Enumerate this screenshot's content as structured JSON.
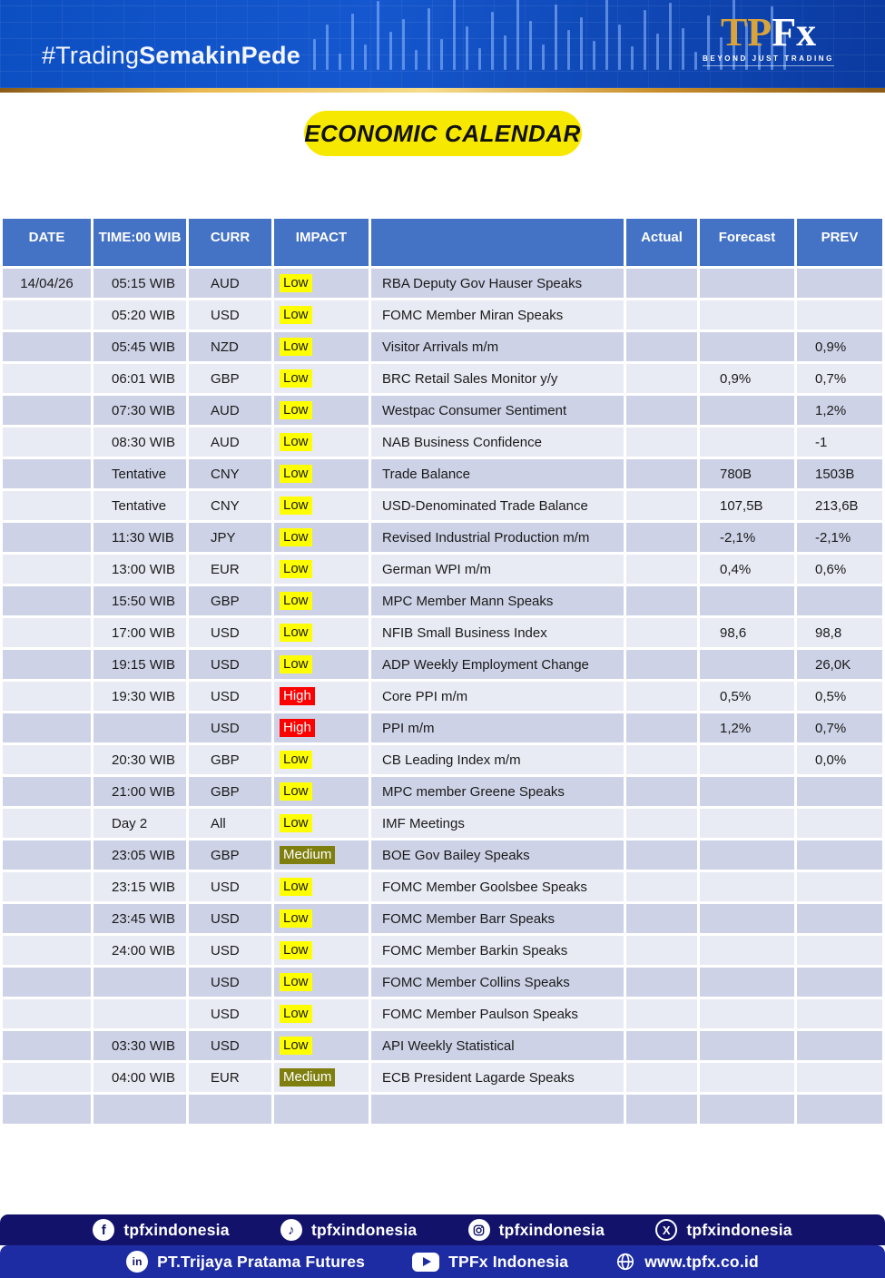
{
  "banner": {
    "hashtag_regular": "#Trading",
    "hashtag_bold": "SemakinPede",
    "logo": {
      "gold": "TP",
      "white": "Fx",
      "tagline": "BEYOND JUST TRADING"
    }
  },
  "title_badge": "ECONOMIC CALENDAR",
  "table": {
    "headers": {
      "date": "DATE",
      "time": "TIME:00 WIB",
      "curr": "CURR",
      "impact": "IMPACT",
      "event": "",
      "actual": "Actual",
      "forecast": "Forecast",
      "prev": "PREV"
    },
    "rows": [
      {
        "date": "14/04/26",
        "time": "05:15 WIB",
        "curr": "AUD",
        "impact": "Low",
        "event": "RBA Deputy Gov Hauser Speaks",
        "actual": "",
        "forecast": "",
        "prev": ""
      },
      {
        "date": "",
        "time": "05:20 WIB",
        "curr": "USD",
        "impact": "Low",
        "event": "FOMC Member Miran Speaks",
        "actual": "",
        "forecast": "",
        "prev": ""
      },
      {
        "date": "",
        "time": "05:45 WIB",
        "curr": "NZD",
        "impact": "Low",
        "event": "Visitor Arrivals m/m",
        "actual": "",
        "forecast": "",
        "prev": "0,9%"
      },
      {
        "date": "",
        "time": "06:01 WIB",
        "curr": "GBP",
        "impact": "Low",
        "event": "BRC Retail Sales Monitor y/y",
        "actual": "",
        "forecast": "0,9%",
        "prev": "0,7%"
      },
      {
        "date": "",
        "time": "07:30 WIB",
        "curr": "AUD",
        "impact": "Low",
        "event": "Westpac Consumer Sentiment",
        "actual": "",
        "forecast": "",
        "prev": "1,2%"
      },
      {
        "date": "",
        "time": "08:30 WIB",
        "curr": "AUD",
        "impact": "Low",
        "event": "NAB Business Confidence",
        "actual": "",
        "forecast": "",
        "prev": "-1"
      },
      {
        "date": "",
        "time": "Tentative",
        "curr": "CNY",
        "impact": "Low",
        "event": "Trade Balance",
        "actual": "",
        "forecast": "780B",
        "prev": "1503B"
      },
      {
        "date": "",
        "time": "Tentative",
        "curr": "CNY",
        "impact": "Low",
        "event": "USD-Denominated Trade Balance",
        "actual": "",
        "forecast": "107,5B",
        "prev": "213,6B"
      },
      {
        "date": "",
        "time": "11:30 WIB",
        "curr": "JPY",
        "impact": "Low",
        "event": "Revised Industrial Production m/m",
        "actual": "",
        "forecast": "-2,1%",
        "prev": "-2,1%"
      },
      {
        "date": "",
        "time": "13:00 WIB",
        "curr": "EUR",
        "impact": "Low",
        "event": "German WPI m/m",
        "actual": "",
        "forecast": "0,4%",
        "prev": "0,6%"
      },
      {
        "date": "",
        "time": "15:50 WIB",
        "curr": "GBP",
        "impact": "Low",
        "event": "MPC Member Mann Speaks",
        "actual": "",
        "forecast": "",
        "prev": ""
      },
      {
        "date": "",
        "time": "17:00 WIB",
        "curr": "USD",
        "impact": "Low",
        "event": "NFIB Small Business Index",
        "actual": "",
        "forecast": "98,6",
        "prev": "98,8"
      },
      {
        "date": "",
        "time": "19:15 WIB",
        "curr": "USD",
        "impact": "Low",
        "event": "ADP Weekly Employment Change",
        "actual": "",
        "forecast": "",
        "prev": "26,0K"
      },
      {
        "date": "",
        "time": "19:30 WIB",
        "curr": "USD",
        "impact": "High",
        "event": "Core PPI m/m",
        "actual": "",
        "forecast": "0,5%",
        "prev": "0,5%"
      },
      {
        "date": "",
        "time": "",
        "curr": "USD",
        "impact": "High",
        "event": "PPI m/m",
        "actual": "",
        "forecast": "1,2%",
        "prev": "0,7%"
      },
      {
        "date": "",
        "time": "20:30 WIB",
        "curr": "GBP",
        "impact": "Low",
        "event": "CB Leading Index m/m",
        "actual": "",
        "forecast": "",
        "prev": "0,0%"
      },
      {
        "date": "",
        "time": "21:00 WIB",
        "curr": "GBP",
        "impact": "Low",
        "event": "MPC member Greene Speaks",
        "actual": "",
        "forecast": "",
        "prev": ""
      },
      {
        "date": "",
        "time": "Day 2",
        "curr": "All",
        "impact": "Low",
        "event": "IMF Meetings",
        "actual": "",
        "forecast": "",
        "prev": ""
      },
      {
        "date": "",
        "time": "23:05 WIB",
        "curr": "GBP",
        "impact": "Medium",
        "event": "BOE Gov Bailey Speaks",
        "actual": "",
        "forecast": "",
        "prev": ""
      },
      {
        "date": "",
        "time": "23:15 WIB",
        "curr": "USD",
        "impact": "Low",
        "event": "FOMC Member Goolsbee Speaks",
        "actual": "",
        "forecast": "",
        "prev": ""
      },
      {
        "date": "",
        "time": "23:45 WIB",
        "curr": "USD",
        "impact": "Low",
        "event": "FOMC Member Barr Speaks",
        "actual": "",
        "forecast": "",
        "prev": ""
      },
      {
        "date": "",
        "time": "24:00 WIB",
        "curr": "USD",
        "impact": "Low",
        "event": "FOMC Member Barkin Speaks",
        "actual": "",
        "forecast": "",
        "prev": ""
      },
      {
        "date": "",
        "time": "",
        "curr": "USD",
        "impact": "Low",
        "event": "FOMC Member Collins Speaks",
        "actual": "",
        "forecast": "",
        "prev": ""
      },
      {
        "date": "",
        "time": "",
        "curr": "USD",
        "impact": "Low",
        "event": "FOMC Member Paulson Speaks",
        "actual": "",
        "forecast": "",
        "prev": ""
      },
      {
        "date": "",
        "time": "03:30 WIB",
        "curr": "USD",
        "impact": "Low",
        "event": "API Weekly Statistical",
        "actual": "",
        "forecast": "",
        "prev": ""
      },
      {
        "date": "",
        "time": "04:00 WIB",
        "curr": "EUR",
        "impact": "Medium",
        "event": "ECB President Lagarde Speaks",
        "actual": "",
        "forecast": "",
        "prev": ""
      },
      {
        "date": "",
        "time": "",
        "curr": "",
        "impact": "",
        "event": "",
        "actual": "",
        "forecast": "",
        "prev": ""
      }
    ]
  },
  "footer": {
    "social": [
      {
        "icon": "facebook",
        "handle": "tpfxindonesia"
      },
      {
        "icon": "tiktok",
        "handle": "tpfxindonesia"
      },
      {
        "icon": "instagram",
        "handle": "tpfxindonesia"
      },
      {
        "icon": "x",
        "handle": "tpfxindonesia"
      }
    ],
    "links": [
      {
        "icon": "linkedin",
        "label": "PT.Trijaya Pratama Futures"
      },
      {
        "icon": "youtube",
        "label": "TPFx Indonesia"
      },
      {
        "icon": "globe",
        "label": "www.tpfx.co.id"
      }
    ]
  },
  "colors": {
    "header_blue": "#4472C4",
    "row_dark": "#CDD2E6",
    "row_light": "#E9EBF4",
    "impact_low_bg": "#FFFF00",
    "impact_high_bg": "#FF0000",
    "impact_medium_bg": "#7F7F0F",
    "badge_yellow": "#F7E800",
    "gold": "#D9A43B",
    "banner_blue": "#1154C8",
    "footer_dark": "#12126B",
    "footer_blue": "#1D2CA3"
  }
}
